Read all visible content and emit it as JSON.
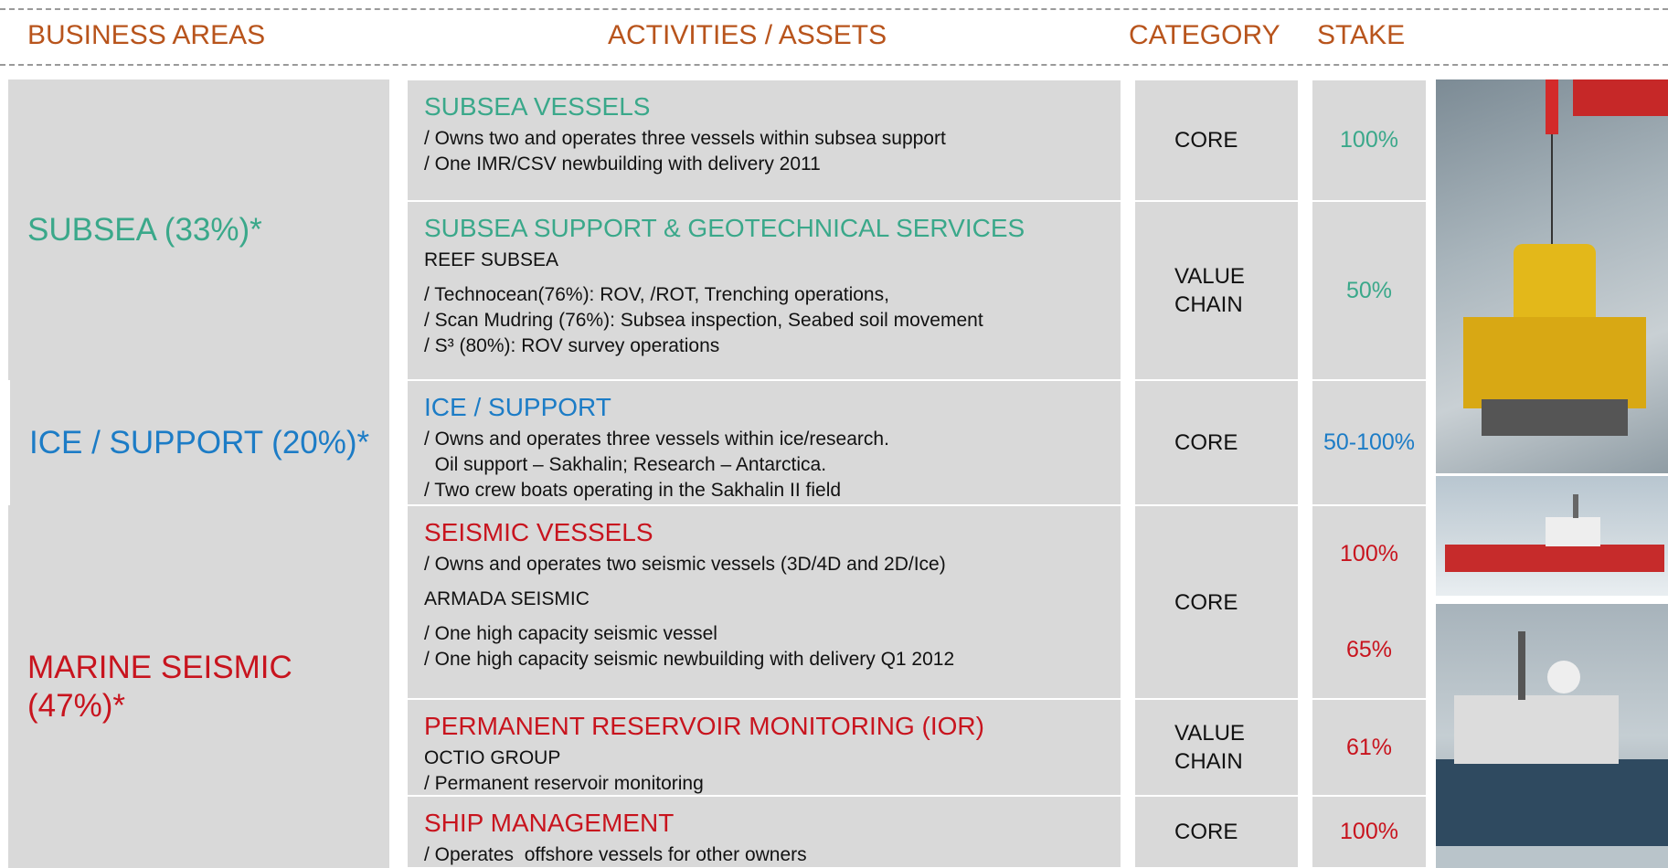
{
  "header": {
    "columns": [
      "BUSINESS AREAS",
      "ACTIVITIES / ASSETS",
      "CATEGORY",
      "STAKE"
    ]
  },
  "areas": [
    {
      "label": "SUBSEA (33%)*",
      "color": "#3aa88a"
    },
    {
      "label": "ICE / SUPPORT (20%)*",
      "color": "#1c7cc6"
    },
    {
      "label": "MARINE SEISMIC (47%)*",
      "color": "#c8141e"
    }
  ],
  "activities": [
    {
      "title": "SUBSEA VESSELS",
      "color": "#3aa88a",
      "groups": [
        [
          "/ Owns two and operates three vessels within subsea support",
          "/ One IMR/CSV newbuilding with delivery 2011"
        ]
      ],
      "category": [
        "CORE"
      ],
      "stakes": [
        "100%"
      ]
    },
    {
      "title": "SUBSEA SUPPORT & GEOTECHNICAL SERVICES",
      "color": "#3aa88a",
      "groups": [
        [
          "REEF SUBSEA"
        ],
        [
          "/ Technocean(76%): ROV, /ROT, Trenching operations,",
          "/ Scan Mudring (76%): Subsea inspection, Seabed soil movement",
          "/ S³ (80%): ROV survey operations"
        ]
      ],
      "category": [
        "VALUE",
        "CHAIN"
      ],
      "stakes": [
        "50%"
      ]
    },
    {
      "title": "ICE / SUPPORT",
      "color": "#1c7cc6",
      "groups": [
        [
          "/ Owns and operates three vessels within ice/research.",
          "  Oil support – Sakhalin; Research – Antarctica.",
          "/ Two crew boats operating in the Sakhalin II field"
        ]
      ],
      "category": [
        "CORE"
      ],
      "stakes": [
        "50-100%"
      ]
    },
    {
      "title": "SEISMIC VESSELS",
      "color": "#c8141e",
      "groups": [
        [
          "/ Owns and operates two seismic vessels (3D/4D and 2D/Ice)"
        ],
        [
          "ARMADA SEISMIC"
        ],
        [
          "/ One high capacity seismic vessel",
          "/ One high capacity seismic newbuilding with delivery Q1 2012"
        ]
      ],
      "category": [
        "CORE"
      ],
      "stakes": [
        "100%",
        "65%"
      ]
    },
    {
      "title": "PERMANENT RESERVOIR MONITORING (IOR)",
      "color": "#c8141e",
      "groups": [
        [
          "OCTIO GROUP",
          "/ Permanent reservoir monitoring"
        ]
      ],
      "category": [
        "VALUE",
        "CHAIN"
      ],
      "stakes": [
        "61%"
      ]
    },
    {
      "title": "SHIP MANAGEMENT",
      "color": "#c8141e",
      "groups": [
        [
          "/ Operates  offshore vessels for other owners"
        ]
      ],
      "category": [
        "CORE"
      ],
      "stakes": [
        "100%"
      ]
    }
  ]
}
